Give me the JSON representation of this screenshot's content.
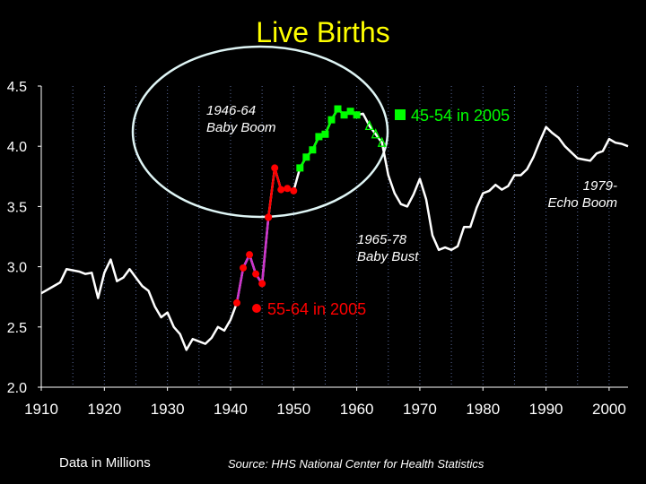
{
  "chart_data": {
    "type": "line",
    "title": "Live Births",
    "xlim": [
      1910,
      2003
    ],
    "ylim": [
      2.0,
      4.5
    ],
    "x_ticks": [
      1910,
      1920,
      1930,
      1940,
      1950,
      1960,
      1970,
      1980,
      1990,
      2000
    ],
    "y_ticks": [
      2.0,
      2.5,
      3.0,
      3.5,
      4.0,
      4.5
    ],
    "grid": "vertical dotted",
    "series": [
      {
        "name": "",
        "color": "#ffffff",
        "x": [
          1910,
          1912,
          1913,
          1914,
          1915,
          1916,
          1917,
          1918,
          1919,
          1920,
          1921,
          1922,
          1923,
          1924,
          1925,
          1926,
          1927,
          1928,
          1929,
          1930,
          1931,
          1932,
          1933,
          1934,
          1935,
          1936,
          1937,
          1938,
          1939,
          1940,
          1941,
          1942,
          1943,
          1944,
          1945,
          1946,
          1947,
          1948,
          1949,
          1950,
          1951,
          1952,
          1953,
          1954,
          1955,
          1956,
          1957,
          1958,
          1959,
          1960,
          1961,
          1962,
          1963,
          1964,
          1965,
          1966,
          1967,
          1968,
          1969,
          1970,
          1971,
          1972,
          1973,
          1974,
          1975,
          1976,
          1977,
          1978,
          1979,
          1980,
          1981,
          1982,
          1983,
          1984,
          1985,
          1986,
          1987,
          1988,
          1989,
          1990,
          1991,
          1992,
          1993,
          1994,
          1995,
          1996,
          1997,
          1998,
          1999,
          2000,
          2001,
          2002,
          2003
        ],
        "y": [
          2.78,
          2.84,
          2.87,
          2.98,
          2.97,
          2.96,
          2.94,
          2.95,
          2.74,
          2.95,
          3.06,
          2.88,
          2.91,
          2.98,
          2.91,
          2.84,
          2.8,
          2.67,
          2.58,
          2.62,
          2.5,
          2.44,
          2.31,
          2.4,
          2.38,
          2.36,
          2.41,
          2.5,
          2.47,
          2.56,
          2.7,
          2.99,
          3.1,
          2.94,
          2.86,
          3.41,
          3.82,
          3.64,
          3.65,
          3.63,
          3.82,
          3.91,
          3.97,
          4.08,
          4.1,
          4.22,
          4.31,
          4.26,
          4.29,
          4.26,
          4.27,
          4.17,
          4.1,
          4.03,
          3.76,
          3.61,
          3.52,
          3.5,
          3.6,
          3.73,
          3.56,
          3.26,
          3.14,
          3.16,
          3.14,
          3.17,
          3.33,
          3.33,
          3.49,
          3.61,
          3.63,
          3.68,
          3.64,
          3.67,
          3.76,
          3.76,
          3.81,
          3.91,
          4.04,
          4.16,
          4.11,
          4.07,
          4.0,
          3.95,
          3.9,
          3.89,
          3.88,
          3.94,
          3.96,
          4.06,
          4.03,
          4.02,
          4.0
        ]
      },
      {
        "name": "55-64 in 2005",
        "color": "#ff0000",
        "line_color": "#cc33cc",
        "x": [
          1941,
          1942,
          1943,
          1944,
          1945,
          1946
        ],
        "y": [
          2.7,
          2.99,
          3.1,
          2.94,
          2.86,
          3.41
        ]
      },
      {
        "name": "",
        "color": "#ff0000",
        "x": [
          1946,
          1947,
          1948,
          1949,
          1950
        ],
        "y": [
          3.41,
          3.82,
          3.64,
          3.65,
          3.63
        ]
      },
      {
        "name": "45-54 in 2005",
        "color": "#00ff00",
        "x": [
          1951,
          1952,
          1953,
          1954,
          1955,
          1956,
          1957,
          1958,
          1959,
          1960
        ],
        "y": [
          3.82,
          3.91,
          3.97,
          4.08,
          4.1,
          4.22,
          4.31,
          4.26,
          4.29,
          4.26
        ]
      },
      {
        "name": "",
        "color": "#00ff00",
        "style": "triangles",
        "x": [
          1962,
          1963,
          1964
        ],
        "y": [
          4.17,
          4.1,
          4.03
        ]
      }
    ],
    "annotations": [
      {
        "lines": [
          "1946-64",
          "Baby Boom"
        ],
        "color": "#ffffff"
      },
      {
        "lines": [
          "1965-78",
          "Baby Bust"
        ],
        "color": "#ffffff"
      },
      {
        "lines": [
          "1979-",
          "Echo Boom"
        ],
        "color": "#ffffff"
      }
    ],
    "legend": [
      {
        "label": "45-54 in 2005",
        "color": "#00ff00",
        "marker": "square"
      },
      {
        "label": "55-64 in 2005",
        "color": "#ff0000",
        "marker": "circle"
      }
    ],
    "ellipse_color": "#dff5f5"
  },
  "footer": {
    "left": "Data in Millions",
    "right": "Source: HHS National Center for Health Statistics"
  }
}
